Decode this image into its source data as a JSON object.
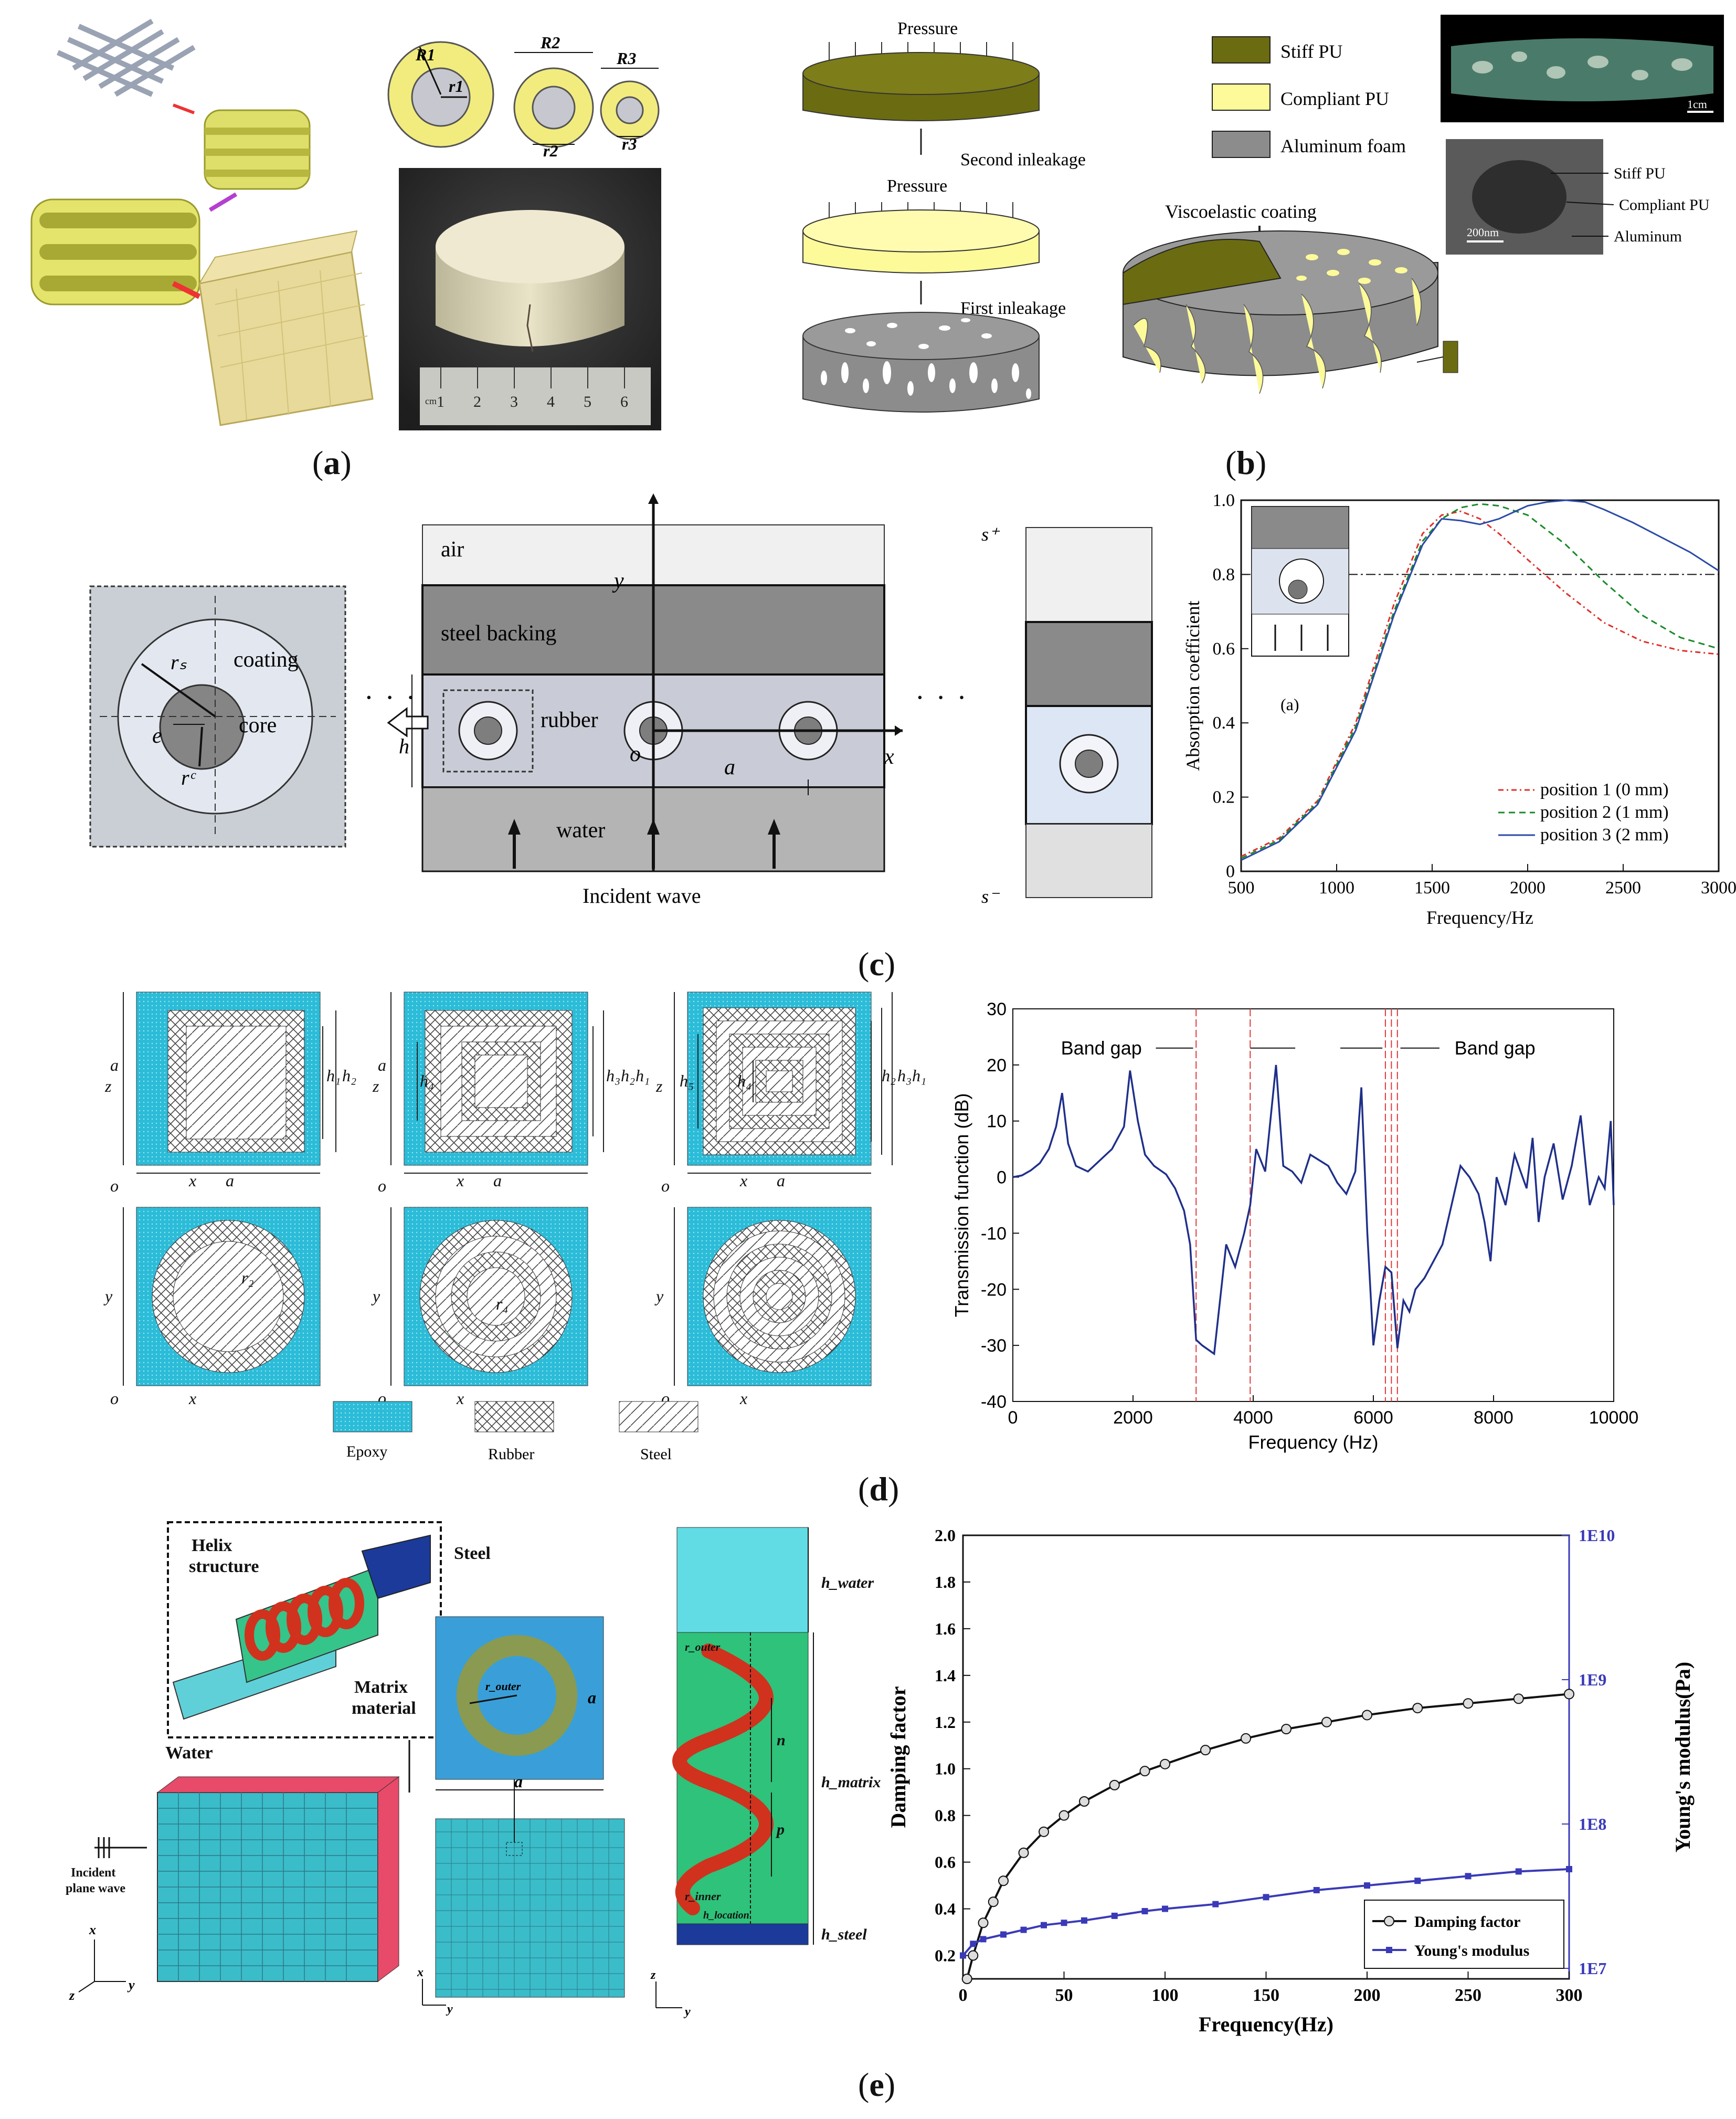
{
  "panels": {
    "a": {
      "label": "a",
      "dim_labels": [
        "R1",
        "r1",
        "R2",
        "r2",
        "R3",
        "r3"
      ],
      "ruler_ticks": [
        "1",
        "2",
        "3",
        "4",
        "5",
        "6"
      ],
      "ruler_unit": "cm"
    },
    "b": {
      "label": "b",
      "process": {
        "pressure": "Pressure",
        "second": "Second inleakage",
        "first": "First inleakage"
      },
      "legend": [
        "Stiff PU",
        "Compliant PU",
        "Aluminum foam"
      ],
      "coating": "Viscoelastic coating",
      "scale1": "1cm",
      "scale2": "200nm",
      "sem_labels": [
        "Stiff PU",
        "Compliant PU",
        "Aluminum"
      ],
      "colors": {
        "stiff": "#6b6b12",
        "compliant": "#fdfa9a",
        "foam": "#8c8c8c"
      }
    },
    "c": {
      "label": "c",
      "cell": {
        "coating": "coating",
        "core": "core",
        "rs": "rₛ",
        "rc": "rᶜ",
        "e": "e"
      },
      "layers": {
        "air": "air",
        "steel": "steel backing",
        "rubber": "rubber",
        "water": "water"
      },
      "axes": {
        "y": "y",
        "x": "x",
        "o": "o",
        "a": "a",
        "h": "h"
      },
      "incident": "Incident wave",
      "splus": "s⁺",
      "sminus": "s⁻",
      "dots": "· · ·",
      "inset_tag": "(a)"
    },
    "d": {
      "label": "d",
      "legend": [
        "Epoxy",
        "Rubber",
        "Steel"
      ],
      "band_gap": "Band gap",
      "cell_labels": {
        "z": "z",
        "x": "x",
        "y": "y",
        "o": "o",
        "a": "a",
        "h1": "h₁",
        "h2": "h₂",
        "h3": "h₃",
        "h4": "h₄",
        "h5": "h₅",
        "r2": "r₂",
        "r4": "r₄"
      }
    },
    "e": {
      "label": "e",
      "labels": {
        "helix": "Helix\nstructure",
        "steel": "Steel",
        "matrix": "Matrix\nmaterial",
        "water": "Water",
        "incident": "Incident\nplane wave",
        "router": "r_outer",
        "rinner": "r_inner",
        "a": "a",
        "hwater": "h_water",
        "hmatrix": "h_matrix",
        "hsteel": "h_steel",
        "hlocation": "h_location",
        "n": "n",
        "p": "p",
        "x": "x",
        "y": "y",
        "z": "z"
      }
    }
  },
  "chart_data": [
    {
      "id": "absorption",
      "type": "line",
      "xlabel": "Frequency/Hz",
      "ylabel": "Absorption coefficient",
      "xlim": [
        500,
        3000
      ],
      "ylim": [
        0,
        1.0
      ],
      "xticks": [
        500,
        1000,
        1500,
        2000,
        2500,
        3000
      ],
      "yticks": [
        0,
        0.2,
        0.4,
        0.6,
        0.8,
        1.0
      ],
      "reference_line": 0.8,
      "series": [
        {
          "name": "position 1 (0 mm)",
          "color": "#e0302a",
          "x": [
            500,
            700,
            900,
            1100,
            1300,
            1450,
            1550,
            1650,
            1750,
            1850,
            2000,
            2200,
            2400,
            2600,
            2800,
            3000
          ],
          "y": [
            0.04,
            0.09,
            0.19,
            0.4,
            0.72,
            0.91,
            0.96,
            0.97,
            0.95,
            0.91,
            0.84,
            0.75,
            0.67,
            0.62,
            0.595,
            0.585
          ]
        },
        {
          "name": "position 2 (1 mm)",
          "color": "#1a8a2a",
          "x": [
            500,
            700,
            900,
            1100,
            1300,
            1450,
            1550,
            1650,
            1750,
            1850,
            2000,
            2200,
            2400,
            2600,
            2800,
            3000
          ],
          "y": [
            0.035,
            0.085,
            0.185,
            0.39,
            0.7,
            0.89,
            0.95,
            0.98,
            0.99,
            0.985,
            0.96,
            0.88,
            0.78,
            0.69,
            0.63,
            0.6
          ]
        },
        {
          "name": "position 3 (2 mm)",
          "color": "#2b4aa8",
          "x": [
            500,
            700,
            900,
            1100,
            1300,
            1450,
            1550,
            1650,
            1750,
            1850,
            2000,
            2100,
            2200,
            2300,
            2400,
            2550,
            2700,
            2850,
            3000
          ],
          "y": [
            0.03,
            0.08,
            0.18,
            0.38,
            0.69,
            0.88,
            0.95,
            0.945,
            0.935,
            0.95,
            0.985,
            0.995,
            1.0,
            0.995,
            0.975,
            0.94,
            0.9,
            0.86,
            0.81
          ]
        }
      ]
    },
    {
      "id": "transmission",
      "type": "line",
      "xlabel": "Frequency (Hz)",
      "ylabel": "Transmission function (dB)",
      "xlim": [
        0,
        10000
      ],
      "ylim": [
        -40,
        30
      ],
      "xticks": [
        0,
        2000,
        4000,
        6000,
        8000,
        10000
      ],
      "yticks": [
        -40,
        -30,
        -20,
        -10,
        0,
        10,
        20,
        30
      ],
      "band_gap_lines": [
        3050,
        3950,
        6200,
        6300,
        6400
      ],
      "series": [
        {
          "name": "transmission",
          "color": "#1f2f8a",
          "x": [
            0,
            150,
            300,
            450,
            600,
            720,
            820,
            920,
            1050,
            1250,
            1450,
            1650,
            1850,
            1950,
            2080,
            2200,
            2350,
            2550,
            2700,
            2850,
            2950,
            3050,
            3150,
            3350,
            3550,
            3700,
            3850,
            3950,
            4050,
            4200,
            4380,
            4500,
            4650,
            4800,
            4950,
            5100,
            5250,
            5400,
            5550,
            5700,
            5800,
            5900,
            6000,
            6100,
            6200,
            6300,
            6400,
            6500,
            6600,
            6700,
            6850,
            7000,
            7150,
            7300,
            7450,
            7600,
            7750,
            7850,
            7950,
            8050,
            8200,
            8350,
            8450,
            8550,
            8650,
            8750,
            8850,
            9000,
            9150,
            9300,
            9450,
            9600,
            9750,
            9850,
            9950,
            10000
          ],
          "y": [
            0,
            0.3,
            1.2,
            2.5,
            5,
            9,
            15,
            6,
            2,
            1,
            3,
            5,
            9,
            19,
            10,
            4,
            2,
            0.5,
            -2,
            -6,
            -12,
            -29,
            -30,
            -31.5,
            -12,
            -16,
            -10,
            -5,
            5,
            1,
            20,
            2,
            1,
            -1,
            4,
            3,
            2,
            -1,
            -3,
            1,
            16,
            -10,
            -30,
            -22,
            -16,
            -17,
            -30.5,
            -22,
            -24,
            -20,
            -18,
            -15,
            -12,
            -5,
            2,
            0,
            -3,
            -8,
            -15,
            0,
            -5,
            4,
            1,
            -2,
            7,
            -8,
            0,
            6,
            -4,
            2,
            11,
            -5,
            0,
            -2,
            10,
            -5
          ]
        }
      ]
    },
    {
      "id": "damping",
      "type": "line",
      "xlabel": "Frequency(Hz)",
      "ylabel": "Damping factor",
      "y2label": "Young's modulus(Pa)",
      "xlim": [
        0,
        300
      ],
      "ylim": [
        0.1,
        2.0
      ],
      "xticks": [
        0,
        50,
        100,
        150,
        200,
        250,
        300
      ],
      "yticks": [
        0.2,
        0.4,
        0.6,
        0.8,
        1.0,
        1.2,
        1.4,
        1.6,
        1.8,
        2.0
      ],
      "y2ticks": [
        "1E7",
        "1E8",
        "1E9",
        "1E10"
      ],
      "series": [
        {
          "name": "Damping factor",
          "color": "#111111",
          "x": [
            2,
            5,
            10,
            15,
            20,
            30,
            40,
            50,
            60,
            75,
            90,
            100,
            120,
            140,
            160,
            180,
            200,
            225,
            250,
            275,
            300
          ],
          "y": [
            0.1,
            0.2,
            0.34,
            0.43,
            0.52,
            0.64,
            0.73,
            0.8,
            0.86,
            0.93,
            0.99,
            1.02,
            1.08,
            1.13,
            1.17,
            1.2,
            1.23,
            1.26,
            1.28,
            1.3,
            1.32
          ]
        },
        {
          "name": "Young's modulus",
          "color": "#3a3ab8",
          "x": [
            0,
            5,
            10,
            20,
            30,
            40,
            50,
            60,
            75,
            90,
            100,
            125,
            150,
            175,
            200,
            225,
            250,
            275,
            300
          ],
          "y": [
            0.2,
            0.25,
            0.27,
            0.29,
            0.31,
            0.33,
            0.34,
            0.35,
            0.37,
            0.39,
            0.4,
            0.42,
            0.45,
            0.48,
            0.5,
            0.52,
            0.54,
            0.56,
            0.57
          ]
        }
      ]
    }
  ]
}
